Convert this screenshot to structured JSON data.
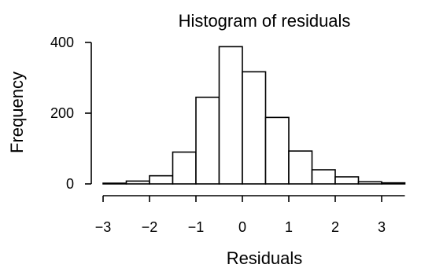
{
  "chart_data": {
    "type": "bar",
    "title": "Histogram of residuals",
    "xlabel": "Residuals",
    "ylabel": "Frequency",
    "xlim": [
      -3,
      3.5
    ],
    "ylim": [
      0,
      400
    ],
    "xticks": [
      -3,
      -2,
      -1,
      0,
      1,
      2,
      3
    ],
    "xtick_labels": [
      "−3",
      "−2",
      "−1",
      "0",
      "1",
      "2",
      "3"
    ],
    "yticks": [
      0,
      200,
      400
    ],
    "ytick_labels": [
      "0",
      "200",
      "400"
    ],
    "bin_edges": [
      -3.0,
      -2.5,
      -2.0,
      -1.5,
      -1.0,
      -0.5,
      0.0,
      0.5,
      1.0,
      1.5,
      2.0,
      2.5,
      3.0,
      3.5
    ],
    "counts": [
      2,
      8,
      23,
      90,
      245,
      388,
      317,
      188,
      93,
      40,
      20,
      6,
      3
    ],
    "grid": false
  }
}
